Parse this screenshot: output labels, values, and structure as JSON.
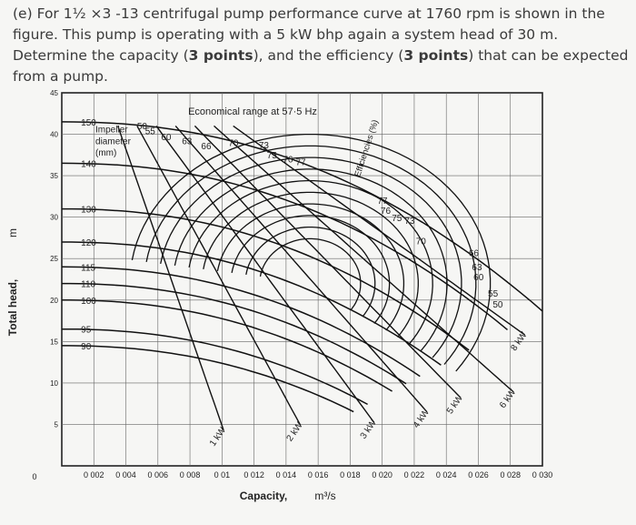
{
  "question": {
    "part_label": "(e)",
    "text_1": "For 1½ ×3 -13 centrifugal pump performance curve at 1760 rpm is shown in the figure. This pump is operating with a 5 kW bhp again a system head of 30 m. Determine the capacity (",
    "points_1": "3 points",
    "text_2": "), and the efficiency (",
    "points_2": "3 points",
    "text_3": ") that can be expected from a pump."
  },
  "chart_data": {
    "type": "line",
    "title": "Economical range at 57·5 Hz",
    "xlabel": "Capacity,",
    "xlabel_unit": "m³/s",
    "ylabel": "Total head,",
    "ylabel_unit": "m",
    "xlim": [
      0,
      0.03
    ],
    "ylim": [
      0,
      45
    ],
    "x_ticks": [
      "0",
      "0 002",
      "0 004",
      "0 006",
      "0 008",
      "0 01",
      "0 012",
      "0 014",
      "0 016",
      "0 018",
      "0 020",
      "0 022",
      "0 024",
      "0 026",
      "0 028",
      "0 030"
    ],
    "y_ticks": [
      "0",
      "5",
      "10",
      "15",
      "20",
      "25",
      "30",
      "35",
      "40",
      "45"
    ],
    "diameter_title": "Impeller diameter (mm)",
    "diameters": [
      {
        "label": "150",
        "head_at_zero": 41.5
      },
      {
        "label": "140",
        "head_at_zero": 36.5
      },
      {
        "label": "130",
        "head_at_zero": 31.0
      },
      {
        "label": "120",
        "head_at_zero": 27.0
      },
      {
        "label": "115",
        "head_at_zero": 24.0
      },
      {
        "label": "110",
        "head_at_zero": 22.0
      },
      {
        "label": "100",
        "head_at_zero": 20.0
      },
      {
        "label": "95",
        "head_at_zero": 16.5
      },
      {
        "label": "90",
        "head_at_zero": 14.5
      }
    ],
    "efficiency_title": "Efficiencies (%)",
    "efficiency_labels_top": [
      "50",
      "55",
      "60",
      "63",
      "66",
      "70",
      "73",
      "75",
      "76",
      "77"
    ],
    "efficiency_labels_right": [
      "77",
      "76",
      "75",
      "73",
      "70",
      "66",
      "63",
      "60",
      "55",
      "50"
    ],
    "power_labels": [
      "1 kW",
      "2 kW",
      "3 kW",
      "4 kW",
      "5 kW",
      "6 kW",
      "8 kW"
    ]
  }
}
